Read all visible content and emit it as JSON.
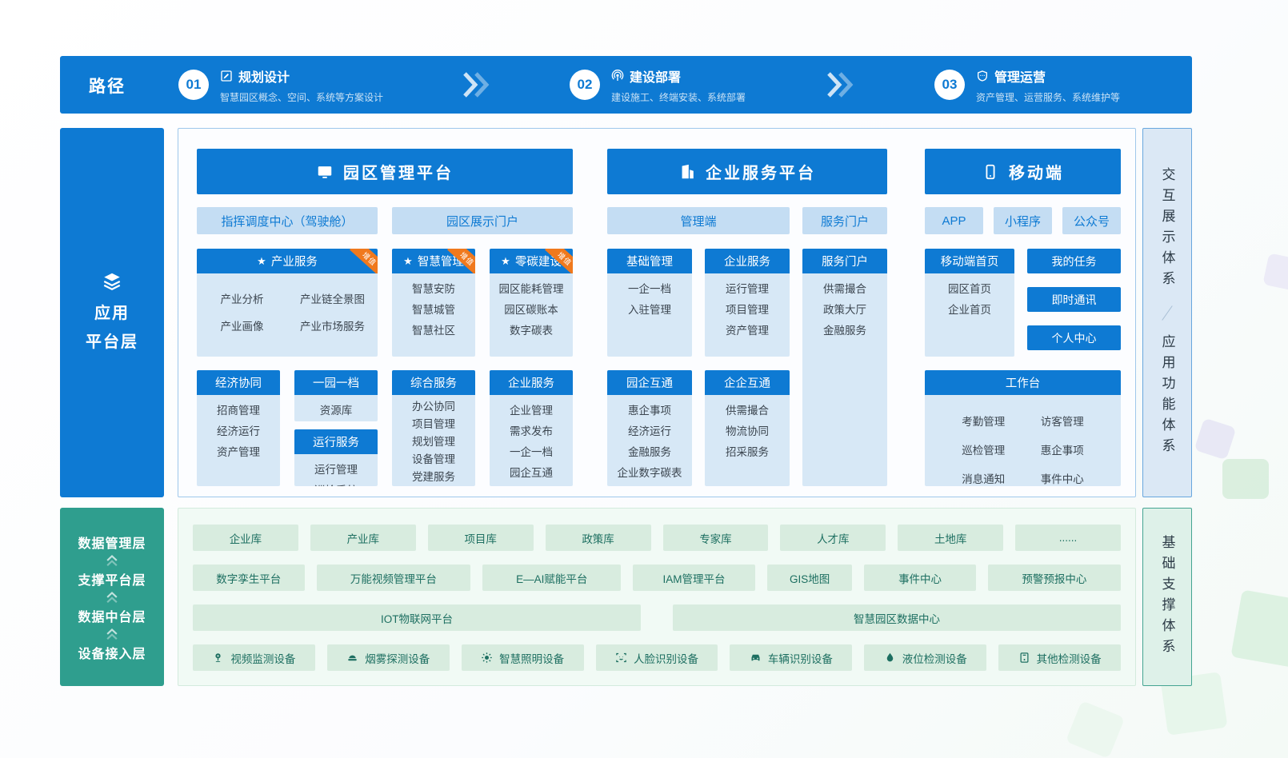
{
  "colors": {
    "primary_blue": "#0e7ad3",
    "chip_bg": "#c4ddf3",
    "card_body_bg": "#d7e8f6",
    "panel_border": "#9fc8eb",
    "ribbon_orange": "#f0791d",
    "teal": "#2f9e8e",
    "teal_chip_bg": "#d8ecdf",
    "teal_chip_text": "#1d6f61",
    "right_top_panel_bg": "#dbe8f5",
    "right_bottom_panel_bg": "#def1e9"
  },
  "path_bar": {
    "label": "路径",
    "steps": [
      {
        "num": "01",
        "icon": "edit-icon",
        "title": "规划设计",
        "subtitle": "智慧园区概念、空间、系统等方案设计"
      },
      {
        "num": "02",
        "icon": "broadcast-icon",
        "title": "建设部署",
        "subtitle": "建设施工、终端安装、系统部署"
      },
      {
        "num": "03",
        "icon": "shield-icon",
        "title": "管理运营",
        "subtitle": "资产管理、运营服务、系统维护等"
      }
    ]
  },
  "left_top_sidebar": {
    "icon": "layers-icon",
    "lines": [
      "应用",
      "平台层"
    ]
  },
  "right_top_panel": {
    "labels": [
      "交互展示体系",
      "应用功能体系"
    ]
  },
  "park_platform": {
    "title": "园区管理平台",
    "icon": "monitor-icon",
    "chips": [
      "指挥调度中心（驾驶舱）",
      "园区展示门户"
    ],
    "top_cards": [
      {
        "title": "产业服务",
        "star": true,
        "ribbon": "增值",
        "two_col": true,
        "items": [
          "产业分析",
          "产业链全景图",
          "产业画像",
          "产业市场服务"
        ]
      },
      {
        "title": "智慧管理",
        "star": true,
        "ribbon": "增值",
        "items": [
          "智慧安防",
          "智慧城管",
          "智慧社区"
        ]
      },
      {
        "title": "零碳建设",
        "star": true,
        "ribbon": "增值",
        "items": [
          "园区能耗管理",
          "园区碳账本",
          "数字碳表"
        ]
      }
    ],
    "bottom_cards": [
      {
        "title": "经济协同",
        "items": [
          "招商管理",
          "经济运行",
          "资产管理"
        ]
      },
      {
        "title": "综合服务",
        "items": [
          "办公协同",
          "项目管理",
          "规划管理",
          "设备管理",
          "党建服务"
        ]
      },
      {
        "title": "企业服务",
        "items": [
          "企业管理",
          "需求发布",
          "一企一档",
          "园企互通"
        ]
      }
    ],
    "stack_cards": [
      {
        "title": "一园一档",
        "items": [
          "资源库"
        ]
      },
      {
        "title": "运行服务",
        "items": [
          "运行管理",
          "巡检系统"
        ]
      }
    ]
  },
  "enterprise_platform": {
    "title": "企业服务平台",
    "icon": "building-icon",
    "chips": [
      "管理端",
      "服务门户"
    ],
    "top_cards": [
      {
        "title": "基础管理",
        "items": [
          "一企一档",
          "入驻管理"
        ]
      },
      {
        "title": "企业服务",
        "items": [
          "运行管理",
          "项目管理",
          "资产管理"
        ]
      }
    ],
    "bottom_cards": [
      {
        "title": "园企互通",
        "items": [
          "惠企事项",
          "经济运行",
          "金融服务",
          "企业数字碳表"
        ]
      },
      {
        "title": "企企互通",
        "items": [
          "供需撮合",
          "物流协同",
          "招采服务"
        ]
      }
    ],
    "tall_card": {
      "title": "服务门户",
      "items": [
        "供需撮合",
        "政策大厅",
        "金融服务"
      ]
    }
  },
  "mobile_platform": {
    "title": "移动端",
    "icon": "phone-icon",
    "chips": [
      "APP",
      "小程序",
      "公众号"
    ],
    "home_card": {
      "title": "移动端首页",
      "items": [
        "园区首页",
        "企业首页"
      ]
    },
    "buttons": [
      "我的任务",
      "即时通讯",
      "个人中心"
    ],
    "workbench_card": {
      "title": "工作台",
      "items": [
        "考勤管理",
        "访客管理",
        "巡检管理",
        "惠企事项",
        "消息通知",
        "事件中心"
      ]
    }
  },
  "left_bottom_sidebar": {
    "layers": [
      "数据管理层",
      "支撑平台层",
      "数据中台层",
      "设备接入层"
    ]
  },
  "right_bottom_panel": {
    "label": "基础支撑体系"
  },
  "foundation": {
    "db_row": [
      "企业库",
      "产业库",
      "项目库",
      "政策库",
      "专家库",
      "人才库",
      "土地库",
      "......"
    ],
    "support_row": [
      "数字孪生平台",
      "万能视频管理平台",
      "E—AI赋能平台",
      "IAM管理平台",
      "GIS地图",
      "事件中心",
      "预警预报中心"
    ],
    "middle_row": [
      "IOT物联网平台",
      "智慧园区数据中心"
    ],
    "device_row": [
      {
        "icon": "camera-icon",
        "label": "视频监测设备"
      },
      {
        "icon": "smoke-detector-icon",
        "label": "烟雾探测设备"
      },
      {
        "icon": "light-icon",
        "label": "智慧照明设备"
      },
      {
        "icon": "face-icon",
        "label": "人脸识别设备"
      },
      {
        "icon": "car-icon",
        "label": "车辆识别设备"
      },
      {
        "icon": "droplet-icon",
        "label": "液位检测设备"
      },
      {
        "icon": "device-icon",
        "label": "其他检测设备"
      }
    ]
  }
}
